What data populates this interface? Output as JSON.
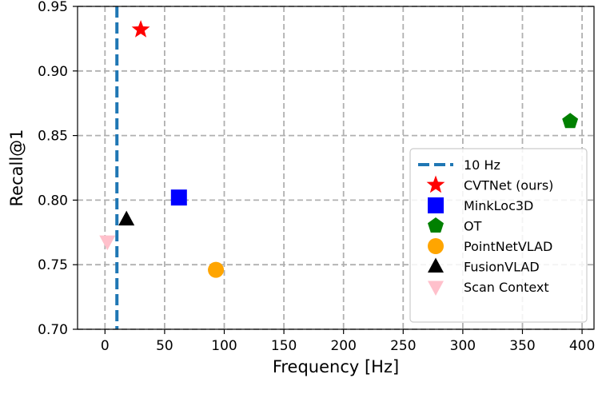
{
  "chart_data": {
    "type": "scatter",
    "xlabel": "Frequency [Hz]",
    "ylabel": "Recall@1",
    "xlim": [
      -23,
      410
    ],
    "ylim": [
      0.7,
      0.95
    ],
    "xticks": [
      0,
      50,
      100,
      150,
      200,
      250,
      300,
      350,
      400
    ],
    "yticks": [
      0.7,
      0.75,
      0.8,
      0.85,
      0.9,
      0.95
    ],
    "grid": true,
    "grid_style": "dashed",
    "legend_position": "lower-right",
    "reference_line": {
      "name": "10 Hz",
      "x": 10,
      "color": "#1f77b4",
      "style": "dashed"
    },
    "series": [
      {
        "name": "CVTNet (ours)",
        "x": 30,
        "y": 0.932,
        "marker": "star",
        "color": "#ff0000"
      },
      {
        "name": "MinkLoc3D",
        "x": 62,
        "y": 0.802,
        "marker": "square",
        "color": "#0000ff"
      },
      {
        "name": "OT",
        "x": 390,
        "y": 0.861,
        "marker": "pentagon",
        "color": "#008000"
      },
      {
        "name": "PointNetVLAD",
        "x": 93,
        "y": 0.746,
        "marker": "circle",
        "color": "#ffa500"
      },
      {
        "name": "FusionVLAD",
        "x": 18,
        "y": 0.785,
        "marker": "triangle-up",
        "color": "#000000"
      },
      {
        "name": "Scan Context",
        "x": 2,
        "y": 0.768,
        "marker": "triangle-down",
        "color": "#ffc0cb"
      }
    ]
  }
}
